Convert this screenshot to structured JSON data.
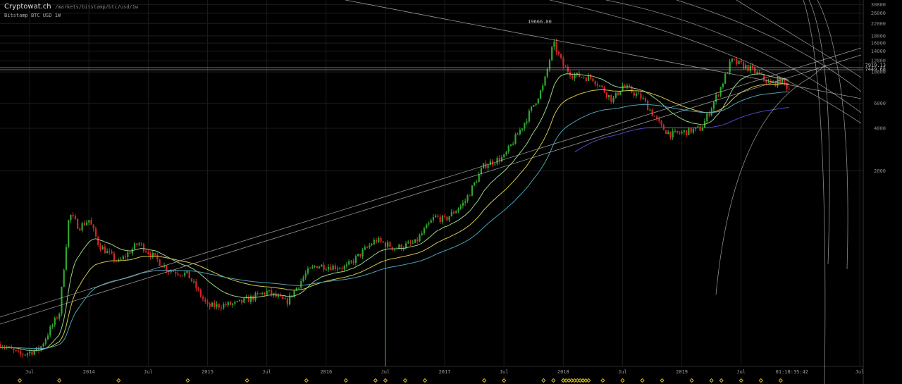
{
  "header": {
    "site": "Cryptowat.ch",
    "path": "/markets/bitstamp/btc/usd/1w",
    "exchange": "Bitstamp",
    "pair": "BTC",
    "quote": "USD",
    "interval": "1W"
  },
  "chart_data": {
    "type": "candlestick",
    "scale": "log",
    "grid": true,
    "y_ticks": [
      2000,
      4000,
      6000,
      10000,
      12000,
      14000,
      16000,
      18000,
      22000,
      26000,
      30000
    ],
    "x_labels": [
      "Jul",
      "2014",
      "Jul",
      "2015",
      "Jul",
      "2016",
      "Jul",
      "2017",
      "Jul",
      "2018",
      "Jul",
      "2019",
      "Jul",
      "Jul"
    ],
    "peak_label": "19666.00",
    "price_labels": [
      "7919.13",
      "7449.68"
    ],
    "cursor_time": "01:18:35:42",
    "colors": {
      "up": "#2ea82e",
      "down": "#d62424",
      "ema1": "#d2c84a",
      "ema2": "#9bd088",
      "ema3": "#4aa3b5",
      "ema4": "#4b4ac0",
      "trend": "#bcbcbc"
    },
    "price_anchors": [
      [
        "2013-04",
        120
      ],
      [
        "2013-06",
        100
      ],
      [
        "2013-08",
        110
      ],
      [
        "2013-10",
        200
      ],
      [
        "2013-11",
        1000
      ],
      [
        "2013-12",
        800
      ],
      [
        "2014-01",
        900
      ],
      [
        "2014-02",
        600
      ],
      [
        "2014-04",
        450
      ],
      [
        "2014-06",
        620
      ],
      [
        "2014-09",
        400
      ],
      [
        "2014-11",
        370
      ],
      [
        "2015-01",
        220
      ],
      [
        "2015-04",
        230
      ],
      [
        "2015-07",
        280
      ],
      [
        "2015-09",
        235
      ],
      [
        "2015-11",
        380
      ],
      [
        "2015-12",
        430
      ],
      [
        "2016-03",
        415
      ],
      [
        "2016-06",
        650
      ],
      [
        "2016-08",
        570
      ],
      [
        "2016-10",
        620
      ],
      [
        "2016-12",
        950
      ],
      [
        "2017-01",
        900
      ],
      [
        "2017-03",
        1200
      ],
      [
        "2017-05",
        2200
      ],
      [
        "2017-07",
        2500
      ],
      [
        "2017-09",
        4300
      ],
      [
        "2017-11",
        8000
      ],
      [
        "2017-12",
        16000
      ],
      [
        "2018-01",
        11000
      ],
      [
        "2018-02",
        9500
      ],
      [
        "2018-04",
        9000
      ],
      [
        "2018-06",
        6300
      ],
      [
        "2018-07",
        8000
      ],
      [
        "2018-09",
        6500
      ],
      [
        "2018-11",
        4000
      ],
      [
        "2018-12",
        3600
      ],
      [
        "2019-03",
        4000
      ],
      [
        "2019-05",
        8000
      ],
      [
        "2019-06",
        12000
      ],
      [
        "2019-08",
        10500
      ],
      [
        "2019-10",
        8200
      ],
      [
        "2019-11",
        8800
      ],
      [
        "2019-12",
        7450
      ]
    ],
    "marker_dates": [
      "2013-06",
      "2013-10",
      "2014-04",
      "2014-11",
      "2015-05",
      "2015-11",
      "2016-03",
      "2016-06",
      "2016-07",
      "2016-09",
      "2016-11",
      "2017-05",
      "2017-07",
      "2017-11",
      "2017-12",
      "2018-01",
      "2018-03",
      "2018-05",
      "2018-07",
      "2018-09",
      "2018-11",
      "2019-02",
      "2019-04",
      "2019-05",
      "2019-07",
      "2019-09",
      "2019-11"
    ]
  }
}
